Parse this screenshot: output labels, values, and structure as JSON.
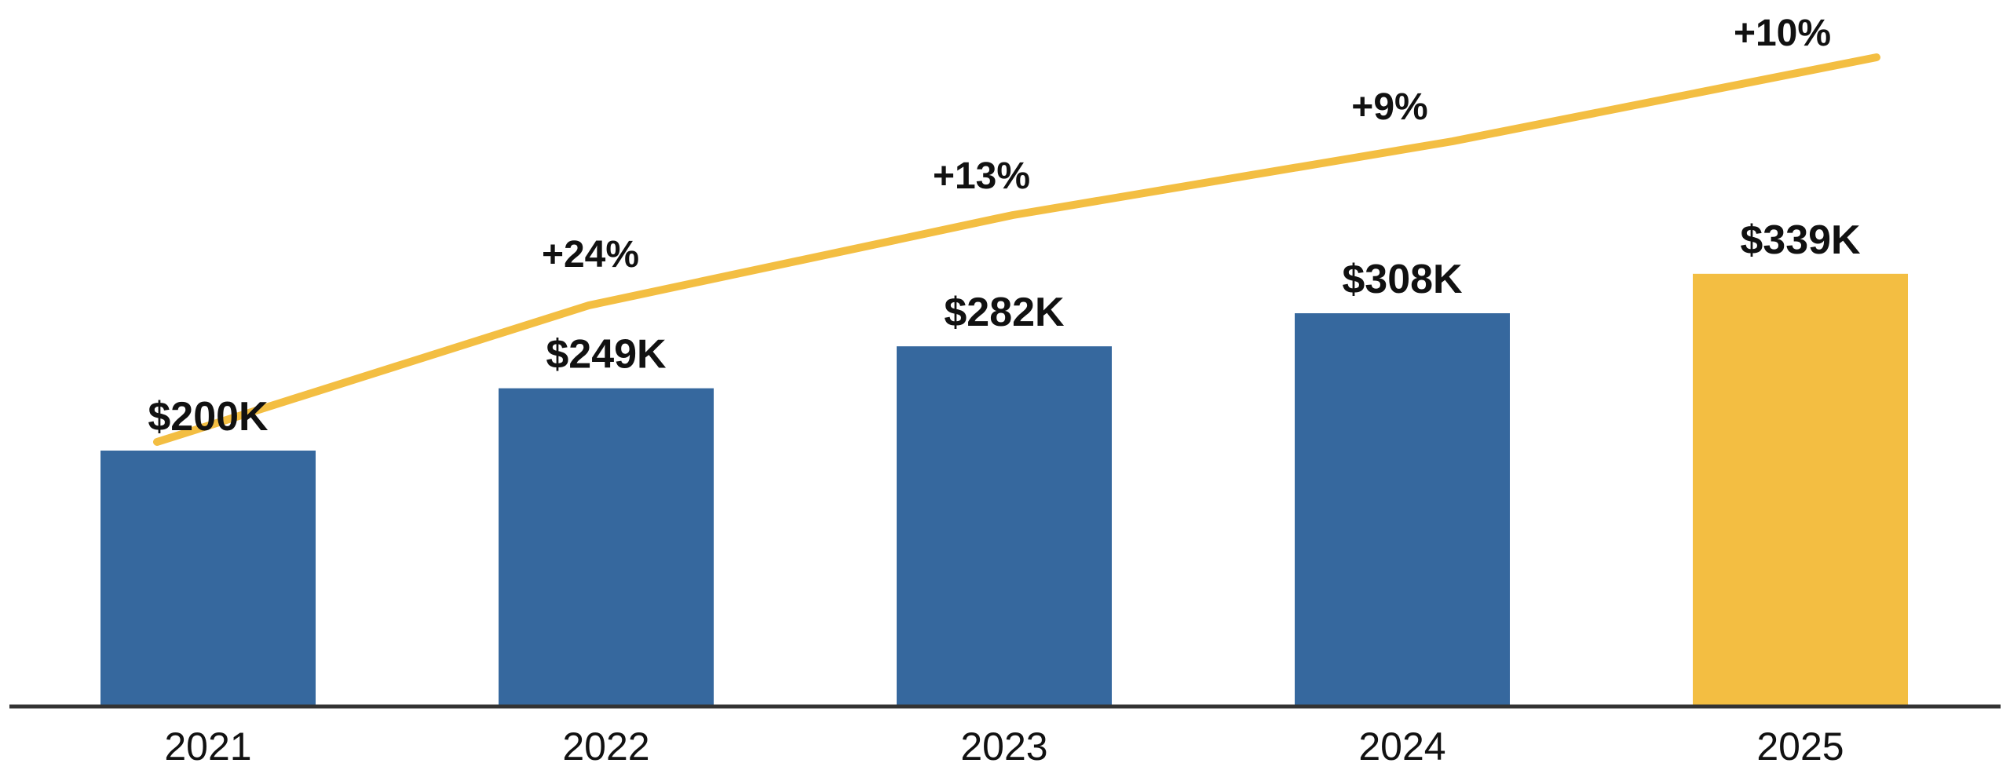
{
  "chart_data": {
    "type": "bar",
    "categories": [
      "2021",
      "2022",
      "2023",
      "2024",
      "2025"
    ],
    "values": [
      200,
      249,
      282,
      308,
      339
    ],
    "value_labels": [
      "$200K",
      "$249K",
      "$282K",
      "$308K",
      "$339K"
    ],
    "growth": {
      "type": "line",
      "values": [
        0,
        24,
        13,
        9,
        10
      ],
      "labels": [
        "",
        "+24%",
        "+13%",
        "+9%",
        "+10%"
      ]
    },
    "ylim": [
      0,
      360
    ],
    "grid": false,
    "legend": "none"
  },
  "colors": {
    "bar": "#36689E",
    "highlight_bar": "#F3BE42",
    "line": "#F3BE42",
    "axis": "#333333",
    "text": "#111111"
  }
}
